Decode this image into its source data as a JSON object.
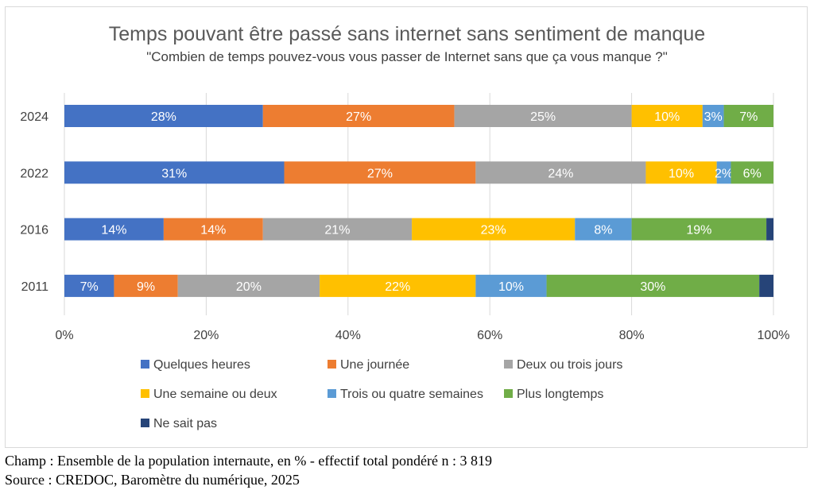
{
  "chart_data": {
    "type": "bar",
    "orientation": "horizontal",
    "stacked": true,
    "title": "Temps pouvant être passé sans internet sans sentiment de manque",
    "subtitle": "\"Combien de temps pouvez-vous vous passer de Internet sans que ça vous manque ?\"",
    "categories": [
      "2024",
      "2022",
      "2016",
      "2011"
    ],
    "xlim": [
      0,
      100
    ],
    "xticks": [
      "0%",
      "20%",
      "40%",
      "60%",
      "80%",
      "100%"
    ],
    "grid": true,
    "legend_position": "bottom",
    "series": [
      {
        "name": "Quelques heures",
        "color": "#4472C4",
        "values": [
          28,
          31,
          14,
          7
        ],
        "labels": [
          "28%",
          "31%",
          "14%",
          "7%"
        ]
      },
      {
        "name": "Une journée",
        "color": "#ED7D31",
        "values": [
          27,
          27,
          14,
          9
        ],
        "labels": [
          "27%",
          "27%",
          "14%",
          "9%"
        ]
      },
      {
        "name": "Deux ou trois jours",
        "color": "#A5A5A5",
        "values": [
          25,
          24,
          21,
          20
        ],
        "labels": [
          "25%",
          "24%",
          "21%",
          "20%"
        ]
      },
      {
        "name": "Une semaine ou deux",
        "color": "#FFC000",
        "values": [
          10,
          10,
          23,
          22
        ],
        "labels": [
          "10%",
          "10%",
          "23%",
          "22%"
        ]
      },
      {
        "name": "Trois ou quatre semaines",
        "color": "#5B9BD5",
        "values": [
          3,
          2,
          8,
          10
        ],
        "labels": [
          "3%",
          "2%",
          "8%",
          "10%"
        ]
      },
      {
        "name": "Plus longtemps",
        "color": "#70AD47",
        "values": [
          7,
          6,
          19,
          30
        ],
        "labels": [
          "7%",
          "6%",
          "19%",
          "30%"
        ]
      },
      {
        "name": "Ne sait pas",
        "color": "#264478",
        "values": [
          0,
          0,
          1,
          2
        ],
        "labels": [
          "",
          "",
          "",
          ""
        ]
      }
    ]
  },
  "footer": {
    "line1": "Champ : Ensemble de la population internaute, en % - effectif total pondéré n : 3 819",
    "line2": "Source : CREDOC, Baromètre du numérique, 2025"
  }
}
